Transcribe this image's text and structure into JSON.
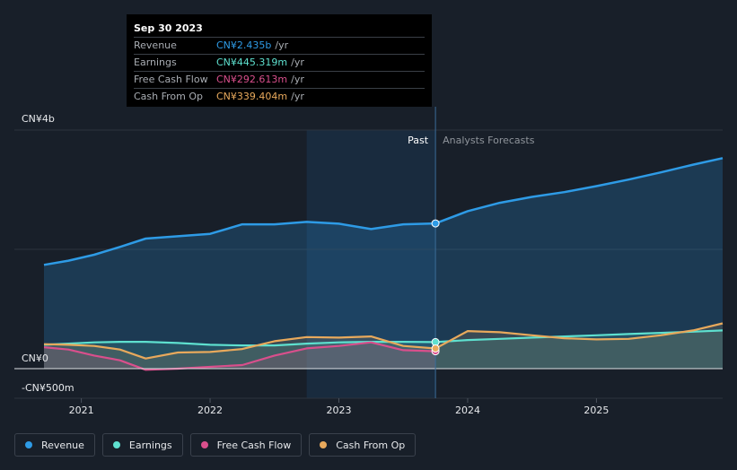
{
  "chart_data": {
    "type": "area",
    "y_unit": "CN¥",
    "ylim": [
      -500,
      4000
    ],
    "y_tick_labels": [
      {
        "value": 4000,
        "label": "CN¥4b"
      },
      {
        "value": 0,
        "label": "CN¥0"
      },
      {
        "value": -500,
        "label": "-CN¥500m"
      }
    ],
    "x_tick_labels": [
      {
        "value": 2021.0,
        "label": "2021"
      },
      {
        "value": 2022.0,
        "label": "2022"
      },
      {
        "value": 2023.0,
        "label": "2023"
      },
      {
        "value": 2024.0,
        "label": "2024"
      },
      {
        "value": 2025.0,
        "label": "2025"
      }
    ],
    "xlim": [
      2020.48,
      2025.98
    ],
    "past_label": "Past",
    "forecast_label": "Analysts Forecasts",
    "divider_x": 2023.75,
    "highlight_start_x": 2022.75,
    "series": [
      {
        "name": "Revenue",
        "color": "#2e9be6",
        "points": [
          [
            2020.71,
            1740
          ],
          [
            2020.9,
            1810
          ],
          [
            2021.1,
            1910
          ],
          [
            2021.3,
            2040
          ],
          [
            2021.5,
            2180
          ],
          [
            2021.75,
            2220
          ],
          [
            2022.0,
            2260
          ],
          [
            2022.25,
            2420
          ],
          [
            2022.5,
            2420
          ],
          [
            2022.75,
            2460
          ],
          [
            2023.0,
            2430
          ],
          [
            2023.25,
            2340
          ],
          [
            2023.5,
            2420
          ],
          [
            2023.75,
            2435
          ],
          [
            2024.0,
            2640
          ],
          [
            2024.25,
            2780
          ],
          [
            2024.5,
            2880
          ],
          [
            2024.75,
            2960
          ],
          [
            2025.0,
            3060
          ],
          [
            2025.25,
            3170
          ],
          [
            2025.5,
            3290
          ],
          [
            2025.75,
            3420
          ],
          [
            2025.98,
            3530
          ]
        ]
      },
      {
        "name": "Earnings",
        "color": "#5ee0cf",
        "points": [
          [
            2020.71,
            400
          ],
          [
            2020.9,
            420
          ],
          [
            2021.1,
            440
          ],
          [
            2021.3,
            450
          ],
          [
            2021.5,
            450
          ],
          [
            2021.75,
            430
          ],
          [
            2022.0,
            400
          ],
          [
            2022.25,
            390
          ],
          [
            2022.5,
            390
          ],
          [
            2022.75,
            420
          ],
          [
            2023.0,
            440
          ],
          [
            2023.25,
            450
          ],
          [
            2023.5,
            450
          ],
          [
            2023.75,
            445
          ],
          [
            2024.0,
            480
          ],
          [
            2024.25,
            500
          ],
          [
            2024.5,
            520
          ],
          [
            2024.75,
            540
          ],
          [
            2025.0,
            560
          ],
          [
            2025.25,
            580
          ],
          [
            2025.5,
            600
          ],
          [
            2025.75,
            620
          ],
          [
            2025.98,
            640
          ]
        ]
      },
      {
        "name": "Free Cash Flow",
        "color": "#d94f8c",
        "points": [
          [
            2020.71,
            360
          ],
          [
            2020.9,
            320
          ],
          [
            2021.1,
            220
          ],
          [
            2021.3,
            140
          ],
          [
            2021.5,
            -20
          ],
          [
            2021.75,
            0
          ],
          [
            2022.0,
            30
          ],
          [
            2022.25,
            60
          ],
          [
            2022.5,
            220
          ],
          [
            2022.75,
            340
          ],
          [
            2023.0,
            380
          ],
          [
            2023.25,
            440
          ],
          [
            2023.5,
            310
          ],
          [
            2023.75,
            292
          ]
        ]
      },
      {
        "name": "Cash From Op",
        "color": "#e8a95c",
        "points": [
          [
            2020.71,
            410
          ],
          [
            2020.9,
            400
          ],
          [
            2021.1,
            380
          ],
          [
            2021.3,
            320
          ],
          [
            2021.5,
            170
          ],
          [
            2021.75,
            270
          ],
          [
            2022.0,
            280
          ],
          [
            2022.25,
            330
          ],
          [
            2022.5,
            460
          ],
          [
            2022.75,
            530
          ],
          [
            2023.0,
            520
          ],
          [
            2023.25,
            540
          ],
          [
            2023.5,
            380
          ],
          [
            2023.75,
            339
          ],
          [
            2024.0,
            630
          ],
          [
            2024.25,
            610
          ],
          [
            2024.5,
            560
          ],
          [
            2024.75,
            510
          ],
          [
            2025.0,
            490
          ],
          [
            2025.25,
            500
          ],
          [
            2025.5,
            560
          ],
          [
            2025.75,
            640
          ],
          [
            2025.98,
            760
          ]
        ]
      }
    ]
  },
  "tooltip": {
    "date": "Sep 30 2023",
    "rows": [
      {
        "label": "Revenue",
        "value": "CN¥2.435b",
        "unit": "/yr",
        "color": "#2e9be6"
      },
      {
        "label": "Earnings",
        "value": "CN¥445.319m",
        "unit": "/yr",
        "color": "#5ee0cf"
      },
      {
        "label": "Free Cash Flow",
        "value": "CN¥292.613m",
        "unit": "/yr",
        "color": "#d94f8c"
      },
      {
        "label": "Cash From Op",
        "value": "CN¥339.404m",
        "unit": "/yr",
        "color": "#e8a95c"
      }
    ]
  },
  "legend": [
    {
      "label": "Revenue",
      "color": "#2e9be6"
    },
    {
      "label": "Earnings",
      "color": "#5ee0cf"
    },
    {
      "label": "Free Cash Flow",
      "color": "#d94f8c"
    },
    {
      "label": "Cash From Op",
      "color": "#e8a95c"
    }
  ],
  "colors": {
    "background": "#181f29",
    "grid": "#2c333d",
    "zero_line": "#e0e3e6",
    "highlight": "#1b3550"
  }
}
